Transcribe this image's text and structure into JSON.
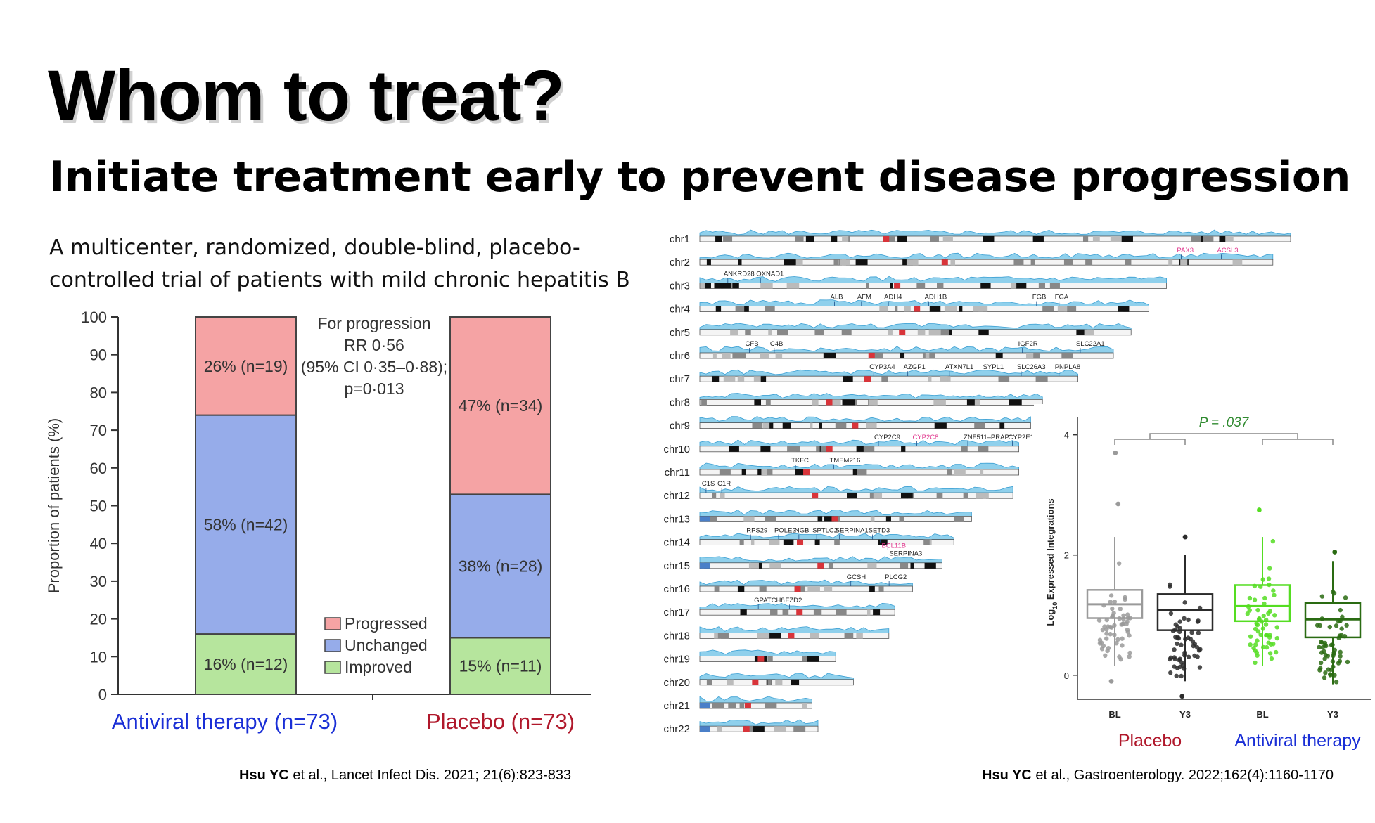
{
  "slide": {
    "title": "Whom to treat?",
    "subtitle": "Initiate treatment early to prevent disease progression",
    "description_line1": "A multicenter, randomized, double-blind, placebo-",
    "description_line2": "controlled trial of patients with mild chronic hepatitis B",
    "citation_left_author": "Hsu YC",
    "citation_left_rest": " et al., Lancet Infect Dis. 2021; 21(6):823-833",
    "citation_right_author": "Hsu YC",
    "citation_right_rest": " et al., Gastroenterology. 2022;162(4):1160-1170",
    "colors": {
      "antiviral_label": "#1a2fd6",
      "placebo_label": "#b0182b"
    }
  },
  "chart_data": [
    {
      "type": "bar",
      "stacked": true,
      "ylabel": "Proportion of patients (%)",
      "ylim": [
        0,
        100
      ],
      "yticks": [
        0,
        10,
        20,
        30,
        40,
        50,
        60,
        70,
        80,
        90,
        100
      ],
      "categories": [
        "Antiviral therapy (n=73)",
        "Placebo (n=73)"
      ],
      "series": [
        {
          "name": "Improved",
          "color": "#b6e59d",
          "values": [
            16,
            15
          ],
          "labels": [
            "16% (n=12)",
            "15% (n=11)"
          ]
        },
        {
          "name": "Unchanged",
          "color": "#96acea",
          "values": [
            58,
            38
          ],
          "labels": [
            "58% (n=42)",
            "38% (n=28)"
          ]
        },
        {
          "name": "Progressed",
          "color": "#f5a3a4",
          "values": [
            26,
            47
          ],
          "labels": [
            "26% (n=19)",
            "47% (n=34)"
          ]
        }
      ],
      "legend_order": [
        "Progressed",
        "Unchanged",
        "Improved"
      ],
      "legend_position": "bottom-center",
      "annotation": [
        "For progression",
        "RR 0·56",
        "(95% CI 0·35–0·88);",
        "p=0·013"
      ]
    },
    {
      "type": "ideogram",
      "chromosomes": [
        "chr1",
        "chr2",
        "chr3",
        "chr4",
        "chr5",
        "chr6",
        "chr7",
        "chr8",
        "chr9",
        "chr10",
        "chr11",
        "chr12",
        "chr13",
        "chr14",
        "chr15",
        "chr16",
        "chr17",
        "chr18",
        "chr19",
        "chr20",
        "chr21",
        "chr22"
      ],
      "relative_length": [
        1.0,
        0.97,
        0.79,
        0.76,
        0.73,
        0.7,
        0.64,
        0.58,
        0.56,
        0.54,
        0.54,
        0.53,
        0.46,
        0.43,
        0.41,
        0.36,
        0.33,
        0.32,
        0.23,
        0.26,
        0.19,
        0.2
      ],
      "gene_labels": [
        {
          "chr": "chr2",
          "genes": [
            "PAX3",
            "ACSL3"
          ],
          "pos": [
            0.84,
            0.91
          ],
          "highlight": [
            true,
            true
          ]
        },
        {
          "chr": "chr3",
          "genes": [
            "ANKRD28",
            "OXNAD1"
          ],
          "pos": [
            0.06,
            0.13
          ],
          "highlight": [
            false,
            false
          ]
        },
        {
          "chr": "chr4",
          "genes": [
            "ALB",
            "AFM",
            "ADH4",
            "ADH1B",
            "FGB",
            "FGA"
          ],
          "pos": [
            0.3,
            0.36,
            0.42,
            0.51,
            0.75,
            0.8
          ],
          "highlight": [
            false,
            false,
            false,
            false,
            false,
            false
          ]
        },
        {
          "chr": "chr6",
          "genes": [
            "CFB",
            "C4B",
            "IGF2R",
            "SLC22A1"
          ],
          "pos": [
            0.12,
            0.18,
            0.78,
            0.92
          ],
          "highlight": [
            false,
            false,
            false,
            false
          ]
        },
        {
          "chr": "chr7",
          "genes": [
            "CYP3A4",
            "AZGP1",
            "ATXN7L1",
            "SYPL1",
            "SLC26A3",
            "PNPLA8"
          ],
          "pos": [
            0.46,
            0.55,
            0.66,
            0.76,
            0.85,
            0.95
          ],
          "highlight": [
            false,
            false,
            false,
            false,
            false,
            false
          ]
        },
        {
          "chr": "chr10",
          "genes": [
            "CYP2C9",
            "CYP2C8",
            "ZNF511–PRAP1",
            "CYP2E1"
          ],
          "pos": [
            0.56,
            0.68,
            0.84,
            0.98
          ],
          "highlight": [
            false,
            true,
            false,
            false
          ]
        },
        {
          "chr": "chr11",
          "genes": [
            "TKFC",
            "TMEM216"
          ],
          "pos": [
            0.3,
            0.42
          ],
          "highlight": [
            false,
            false
          ]
        },
        {
          "chr": "chr12",
          "genes": [
            "C1S",
            "C1R"
          ],
          "pos": [
            0.02,
            0.07
          ],
          "highlight": [
            false,
            false
          ]
        },
        {
          "chr": "chr14",
          "genes": [
            "RPS29",
            "POLE2",
            "NGB",
            "SPTLC2",
            "SERPINA1",
            "SETD3",
            "BCL11B",
            "SERPINA3"
          ],
          "pos": [
            0.2,
            0.31,
            0.39,
            0.46,
            0.55,
            0.68,
            0.71,
            0.74
          ],
          "highlight": [
            false,
            false,
            false,
            false,
            false,
            false,
            true,
            false
          ]
        },
        {
          "chr": "chr16",
          "genes": [
            "GCSH",
            "PLCG2"
          ],
          "pos": [
            0.71,
            0.89
          ],
          "highlight": [
            false,
            false
          ]
        },
        {
          "chr": "chr17",
          "genes": [
            "GPATCH8",
            "FZD2"
          ],
          "pos": [
            0.3,
            0.46
          ],
          "highlight": [
            false,
            false
          ]
        }
      ]
    },
    {
      "type": "box",
      "ylabel": "Log10 Expressed Integrations",
      "ylabel_main": "Log",
      "ylabel_sub": "10",
      "ylabel_rest": " Expressed Integrations",
      "yticks": [
        0,
        2,
        4
      ],
      "ylim": [
        -0.4,
        4.3
      ],
      "annotation": "P = .037",
      "groups": [
        {
          "name": "Placebo",
          "color": "#b0182b",
          "boxes": [
            {
              "label": "BL",
              "color": "#9a9a9a",
              "q1": 0.95,
              "median": 1.18,
              "q3": 1.42,
              "whisker_low": 0.15,
              "whisker_high": 2.3,
              "outliers": [
                2.85,
                3.7,
                -0.1
              ]
            },
            {
              "label": "Y3",
              "color": "#2b2b2b",
              "q1": 0.75,
              "median": 1.08,
              "q3": 1.35,
              "whisker_low": -0.1,
              "whisker_high": 2.0,
              "outliers": [
                2.3,
                -0.35
              ]
            }
          ]
        },
        {
          "name": "Antiviral therapy",
          "color": "#1a2fd6",
          "boxes": [
            {
              "label": "BL",
              "color": "#55dd22",
              "q1": 0.9,
              "median": 1.15,
              "q3": 1.5,
              "whisker_low": 0.15,
              "whisker_high": 2.3,
              "outliers": [
                2.75
              ]
            },
            {
              "label": "Y3",
              "color": "#2a6b12",
              "q1": 0.63,
              "median": 0.93,
              "q3": 1.2,
              "whisker_low": -0.15,
              "whisker_high": 1.9,
              "outliers": [
                2.05
              ]
            }
          ]
        }
      ]
    }
  ]
}
